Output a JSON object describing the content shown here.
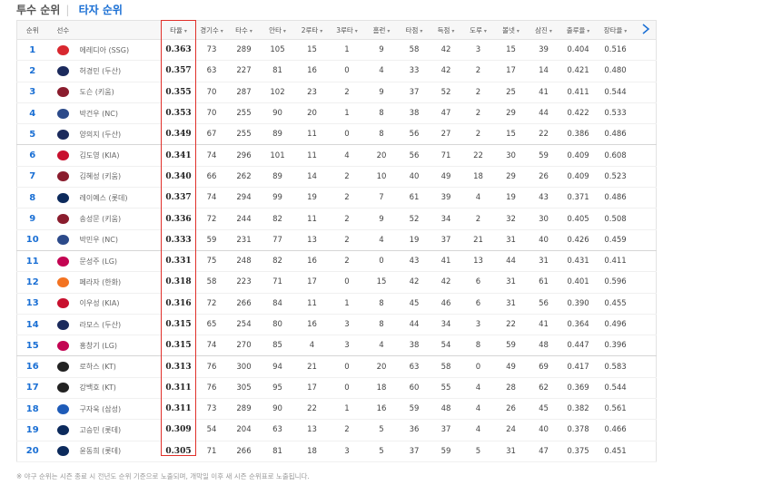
{
  "tabs": [
    "투수 순위",
    "타자 순위"
  ],
  "table": {
    "header": [
      "순위",
      "선수",
      "타율",
      "경기수",
      "타수",
      "안타",
      "2루타",
      "3루타",
      "홈런",
      "타점",
      "득점",
      "도루",
      "볼넷",
      "삼진",
      "출루율",
      "장타율"
    ],
    "rows": [
      [
        "1",
        "에레디아 (SSG)",
        "0.363",
        "73",
        "289",
        "105",
        "15",
        "1",
        "9",
        "58",
        "42",
        "3",
        "15",
        "39",
        "0.404",
        "0.516"
      ],
      [
        "2",
        "허경민 (두산)",
        "0.357",
        "63",
        "227",
        "81",
        "16",
        "0",
        "4",
        "33",
        "42",
        "2",
        "17",
        "14",
        "0.421",
        "0.480"
      ],
      [
        "3",
        "도슨 (키움)",
        "0.355",
        "70",
        "287",
        "102",
        "23",
        "2",
        "9",
        "37",
        "52",
        "2",
        "25",
        "41",
        "0.411",
        "0.544"
      ],
      [
        "4",
        "박건우 (NC)",
        "0.353",
        "70",
        "255",
        "90",
        "20",
        "1",
        "8",
        "38",
        "47",
        "2",
        "29",
        "44",
        "0.422",
        "0.533"
      ],
      [
        "5",
        "양의지 (두산)",
        "0.349",
        "67",
        "255",
        "89",
        "11",
        "0",
        "8",
        "56",
        "27",
        "2",
        "15",
        "22",
        "0.386",
        "0.486"
      ],
      [
        "6",
        "김도영 (KIA)",
        "0.341",
        "74",
        "296",
        "101",
        "11",
        "4",
        "20",
        "56",
        "71",
        "22",
        "30",
        "59",
        "0.409",
        "0.608"
      ],
      [
        "7",
        "김혜성 (키움)",
        "0.340",
        "66",
        "262",
        "89",
        "14",
        "2",
        "10",
        "40",
        "49",
        "18",
        "29",
        "26",
        "0.409",
        "0.523"
      ],
      [
        "8",
        "레이예스 (롯데)",
        "0.337",
        "74",
        "294",
        "99",
        "19",
        "2",
        "7",
        "61",
        "39",
        "4",
        "19",
        "43",
        "0.371",
        "0.486"
      ],
      [
        "9",
        "송성문 (키움)",
        "0.336",
        "72",
        "244",
        "82",
        "11",
        "2",
        "9",
        "52",
        "34",
        "2",
        "32",
        "30",
        "0.405",
        "0.508"
      ],
      [
        "10",
        "박민우 (NC)",
        "0.333",
        "59",
        "231",
        "77",
        "13",
        "2",
        "4",
        "19",
        "37",
        "21",
        "31",
        "40",
        "0.426",
        "0.459"
      ],
      [
        "11",
        "문성주 (LG)",
        "0.331",
        "75",
        "248",
        "82",
        "16",
        "2",
        "0",
        "43",
        "41",
        "13",
        "44",
        "31",
        "0.431",
        "0.411"
      ],
      [
        "12",
        "페라자 (한화)",
        "0.318",
        "58",
        "223",
        "71",
        "17",
        "0",
        "15",
        "42",
        "42",
        "6",
        "31",
        "61",
        "0.401",
        "0.596"
      ],
      [
        "13",
        "이우성 (KIA)",
        "0.316",
        "72",
        "266",
        "84",
        "11",
        "1",
        "8",
        "45",
        "46",
        "6",
        "31",
        "56",
        "0.390",
        "0.455"
      ],
      [
        "14",
        "라모스 (두산)",
        "0.315",
        "65",
        "254",
        "80",
        "16",
        "3",
        "8",
        "44",
        "34",
        "3",
        "22",
        "41",
        "0.364",
        "0.496"
      ],
      [
        "15",
        "홍창기 (LG)",
        "0.315",
        "74",
        "270",
        "85",
        "4",
        "3",
        "4",
        "38",
        "54",
        "8",
        "59",
        "48",
        "0.447",
        "0.396"
      ],
      [
        "16",
        "로하스 (KT)",
        "0.313",
        "76",
        "300",
        "94",
        "21",
        "0",
        "20",
        "63",
        "58",
        "0",
        "49",
        "69",
        "0.417",
        "0.583"
      ],
      [
        "17",
        "강백호 (KT)",
        "0.311",
        "76",
        "305",
        "95",
        "17",
        "0",
        "18",
        "60",
        "55",
        "4",
        "28",
        "62",
        "0.369",
        "0.544"
      ],
      [
        "18",
        "구자욱 (삼성)",
        "0.311",
        "73",
        "289",
        "90",
        "22",
        "1",
        "16",
        "59",
        "48",
        "4",
        "26",
        "45",
        "0.382",
        "0.561"
      ],
      [
        "19",
        "고승민 (롯데)",
        "0.309",
        "54",
        "204",
        "63",
        "13",
        "2",
        "5",
        "36",
        "37",
        "4",
        "24",
        "40",
        "0.378",
        "0.466"
      ],
      [
        "20",
        "윤동희 (롯데)",
        "0.305",
        "71",
        "266",
        "81",
        "18",
        "3",
        "5",
        "37",
        "59",
        "5",
        "31",
        "47",
        "0.375",
        "0.451"
      ]
    ]
  },
  "note": "※ 야구 순위는 시즌 종료 시 전년도 순위 기준으로 노출되며, 개막일 이후 새 시즌 순위표로 노출됩니다."
}
